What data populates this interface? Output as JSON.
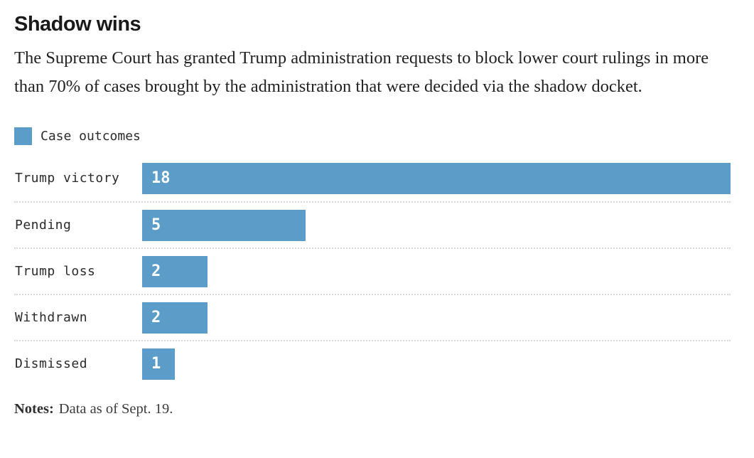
{
  "header": {
    "title": "Shadow wins",
    "subtitle": "The Supreme Court has granted Trump administration requests to block lower court rulings in more than 70% of cases brought by the administration that were decided via the shadow docket."
  },
  "legend": {
    "label": "Case outcomes",
    "swatch_color": "#5b9cc8"
  },
  "chart_data": {
    "type": "bar",
    "orientation": "horizontal",
    "title": "Shadow wins",
    "series_label": "Case outcomes",
    "categories": [
      "Trump victory",
      "Pending",
      "Trump loss",
      "Withdrawn",
      "Dismissed"
    ],
    "values": [
      18,
      5,
      2,
      2,
      1
    ],
    "xlim": [
      0,
      18
    ],
    "bar_color": "#5b9cc8",
    "value_label_color": "#ffffff",
    "value_labels_inside": true,
    "grid": false,
    "row_separator": "dotted",
    "legend_position": "top-left"
  },
  "notes": {
    "label": "Notes:",
    "text": "Data as of Sept. 19."
  }
}
